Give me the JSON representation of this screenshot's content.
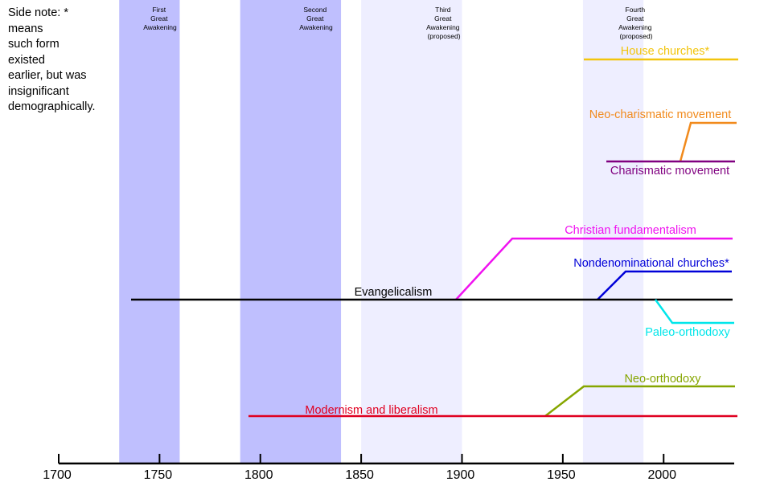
{
  "side_note": {
    "lines": [
      "Side note: *",
      "means",
      "such form",
      "existed",
      "earlier, but was",
      "insignificant",
      "demographically."
    ]
  },
  "colors": {
    "band_strong": "#bfbffe",
    "band_light": "#eeeeff",
    "axis": "#000000"
  },
  "awakenings": [
    {
      "id": "first",
      "lines": [
        "First",
        "Great",
        "Awakening"
      ],
      "start": 1730,
      "end": 1760,
      "shade": "band_strong"
    },
    {
      "id": "second",
      "lines": [
        "Second",
        "Great",
        "Awakening"
      ],
      "start": 1790,
      "end": 1840,
      "shade": "band_strong"
    },
    {
      "id": "third",
      "lines": [
        "Third",
        "Great",
        "Awakening",
        "(proposed)"
      ],
      "start": 1850,
      "end": 1900,
      "shade": "band_light"
    },
    {
      "id": "fourth",
      "lines": [
        "Fourth",
        "Great",
        "Awakening",
        "(proposed)"
      ],
      "start": 1960,
      "end": 1990,
      "shade": "band_light"
    }
  ],
  "timeline_axis": {
    "ticks": [
      1700,
      1750,
      1800,
      1850,
      1900,
      1950,
      2000
    ]
  },
  "movements": [
    {
      "id": "house-churches",
      "label": "House churches*",
      "color": "#f2c50e"
    },
    {
      "id": "neo-charismatic",
      "label": "Neo-charismatic movement",
      "color": "#f18a1c"
    },
    {
      "id": "charismatic",
      "label": "Charismatic movement",
      "color": "#800080"
    },
    {
      "id": "fundamentalism",
      "label": "Christian fundamentalism",
      "color": "#f012f0"
    },
    {
      "id": "nondenominational",
      "label": "Nondenominational churches*",
      "color": "#0000d8"
    },
    {
      "id": "evangelicalism",
      "label": "Evangelicalism",
      "color": "#000000"
    },
    {
      "id": "paleo-orthodoxy",
      "label": "Paleo-orthodoxy",
      "color": "#00e6ea"
    },
    {
      "id": "neo-orthodoxy",
      "label": "Neo-orthodoxy",
      "color": "#86a600"
    },
    {
      "id": "modernism",
      "label": "Modernism and liberalism",
      "color": "#e00020"
    }
  ]
}
